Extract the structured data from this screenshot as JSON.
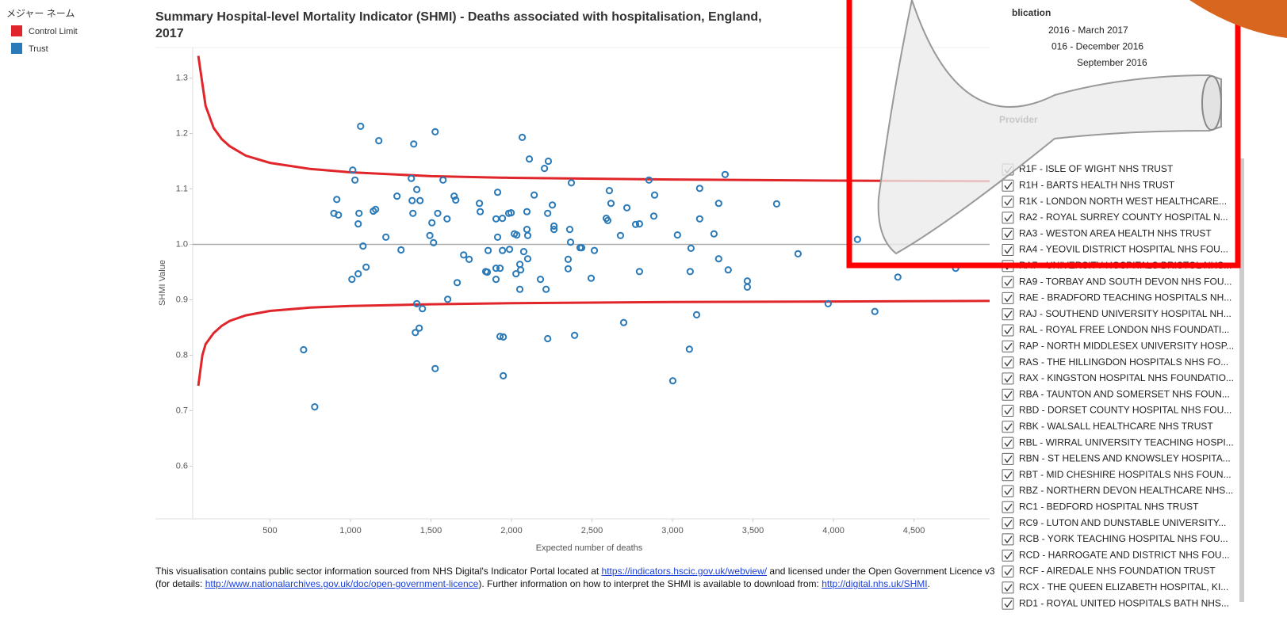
{
  "chart_data": {
    "type": "scatter",
    "title": "Summary Hospital-level Mortality Indicator (SHMI) - Deaths associated with hospitalisation, England,",
    "title_line2": "2017",
    "x_label": "Expected number of deaths",
    "y_label": "SHMI Value",
    "legend_title": "メジャー ネーム",
    "xlim": [
      20,
      4970
    ],
    "ylim": [
      0.505,
      1.355
    ],
    "xticks": [
      500,
      {
        "value": 1000,
        "label": "1,000"
      },
      {
        "value": 1500,
        "label": "1,500"
      },
      {
        "value": 2000,
        "label": "2,000"
      },
      {
        "value": 2500,
        "label": "2,500"
      },
      {
        "value": 3000,
        "label": "3,000"
      },
      {
        "value": 3500,
        "label": "3,500"
      },
      {
        "value": 4000,
        "label": "4,000"
      },
      {
        "value": 4500,
        "label": "4,500"
      }
    ],
    "yticks": [
      0.6,
      0.7,
      0.8,
      0.9,
      {
        "value": 1,
        "label": "1.0"
      },
      1.1,
      1.2,
      1.3
    ],
    "reference_line": 1,
    "control_limits": {
      "name": "Control Limit",
      "color": "#e0262b",
      "upper": {
        "x": [
          55,
          80,
          100,
          150,
          200,
          250,
          350,
          500,
          750,
          1000,
          1500,
          2000,
          3000,
          4000,
          4970
        ],
        "values": [
          1.34,
          1.29,
          1.25,
          1.21,
          1.19,
          1.177,
          1.16,
          1.147,
          1.136,
          1.13,
          1.123,
          1.12,
          1.117,
          1.115,
          1.114
        ]
      },
      "lower": {
        "x": [
          55,
          80,
          100,
          150,
          200,
          250,
          350,
          500,
          750,
          1000,
          1500,
          2000,
          3000,
          4000,
          4970
        ],
        "values": [
          0.745,
          0.8,
          0.82,
          0.84,
          0.853,
          0.862,
          0.872,
          0.88,
          0.886,
          0.889,
          0.892,
          0.894,
          0.896,
          0.897,
          0.898
        ]
      }
    },
    "series": [
      {
        "name": "Trust",
        "color": "#2a7ab9",
        "x": [
          1063,
          1526,
          1176,
          1393,
          2067,
          2111,
          2229,
          2205,
          1014,
          1028,
          1378,
          1575,
          1412,
          2372,
          2854,
          3169,
          3327,
          2608,
          1289,
          915,
          1383,
          1432,
          1644,
          1654,
          1914,
          2141,
          2254,
          1801,
          2889,
          2717,
          2618,
          3287,
          3647,
          897,
          925,
          1053,
          1142,
          1156,
          1388,
          1542,
          1600,
          1806,
          1904,
          1944,
          1983,
          1998,
          2096,
          2225,
          2589,
          2598,
          2771,
          2795,
          2884,
          3169,
          1048,
          1506,
          2264,
          2264,
          2096,
          2362,
          1220,
          1493,
          1914,
          2018,
          2033,
          2101,
          2677,
          3031,
          3258,
          2367,
          2426,
          2436,
          1516,
          1078,
          1314,
          1855,
          1944,
          1988,
          2076,
          2515,
          3115,
          3780,
          4149,
          1703,
          1737,
          2101,
          2352,
          3287,
          2052,
          1097,
          1929,
          2057,
          2352,
          2795,
          3110,
          3346,
          1840,
          1850,
          1904,
          2028,
          1048,
          1009,
          2180,
          1904,
          2495,
          3465,
          3465,
          4400,
          4759,
          1663,
          2052,
          2215,
          1604,
          1412,
          1447,
          3967,
          4257,
          3150,
          2697,
          1427,
          1403,
          1929,
          1949,
          2225,
          2392,
          709,
          3105,
          1526,
          1949,
          3002,
          778
        ],
        "values": [
          1.213,
          1.203,
          1.187,
          1.181,
          1.193,
          1.154,
          1.15,
          1.137,
          1.134,
          1.116,
          1.119,
          1.116,
          1.099,
          1.111,
          1.116,
          1.101,
          1.126,
          1.097,
          1.087,
          1.081,
          1.079,
          1.079,
          1.087,
          1.08,
          1.094,
          1.089,
          1.071,
          1.074,
          1.089,
          1.066,
          1.074,
          1.074,
          1.073,
          1.056,
          1.053,
          1.056,
          1.06,
          1.063,
          1.056,
          1.056,
          1.046,
          1.059,
          1.046,
          1.047,
          1.056,
          1.057,
          1.059,
          1.056,
          1.047,
          1.043,
          1.036,
          1.037,
          1.051,
          1.046,
          1.037,
          1.039,
          1.033,
          1.027,
          1.027,
          1.027,
          1.013,
          1.016,
          1.013,
          1.019,
          1.017,
          1.016,
          1.016,
          1.017,
          1.019,
          1.004,
          0.994,
          0.994,
          1.003,
          0.997,
          0.99,
          0.989,
          0.989,
          0.991,
          0.987,
          0.989,
          0.993,
          0.983,
          1.009,
          0.981,
          0.973,
          0.974,
          0.973,
          0.974,
          0.964,
          0.959,
          0.957,
          0.954,
          0.956,
          0.951,
          0.951,
          0.954,
          0.951,
          0.95,
          0.957,
          0.947,
          0.947,
          0.937,
          0.937,
          0.937,
          0.939,
          0.934,
          0.923,
          0.941,
          0.957,
          0.931,
          0.919,
          0.919,
          0.901,
          0.893,
          0.884,
          0.893,
          0.879,
          0.873,
          0.859,
          0.849,
          0.841,
          0.834,
          0.833,
          0.83,
          0.836,
          0.81,
          0.811,
          0.776,
          0.763,
          0.754,
          0.707
        ]
      }
    ]
  },
  "filters": {
    "publication": {
      "title": "blication",
      "items": [
        "2016 - March 2017",
        "016 - December 2016",
        "September 2016"
      ]
    },
    "provider": {
      "title": "Provider",
      "items": [
        "R1F - ISLE OF WIGHT NHS TRUST",
        "R1H - BARTS HEALTH NHS TRUST",
        "R1K - LONDON NORTH WEST HEALTHCARE...",
        "RA2 - ROYAL SURREY COUNTY HOSPITAL N...",
        "RA3 - WESTON AREA HEALTH NHS TRUST",
        "RA4 - YEOVIL DISTRICT HOSPITAL NHS FOU...",
        "RA7 - UNIVERSITY HOSPITALS BRISTOL NHS...",
        "RA9 - TORBAY AND SOUTH DEVON NHS FOU...",
        "RAE - BRADFORD TEACHING HOSPITALS NH...",
        "RAJ - SOUTHEND UNIVERSITY HOSPITAL NH...",
        "RAL - ROYAL FREE LONDON NHS FOUNDATI...",
        "RAP - NORTH MIDDLESEX UNIVERSITY HOSP...",
        "RAS - THE HILLINGDON HOSPITALS NHS FO...",
        "RAX - KINGSTON HOSPITAL NHS FOUNDATIO...",
        "RBA - TAUNTON AND SOMERSET NHS FOUN...",
        "RBD - DORSET COUNTY HOSPITAL NHS FOU...",
        "RBK - WALSALL HEALTHCARE NHS TRUST",
        "RBL - WIRRAL UNIVERSITY TEACHING HOSPI...",
        "RBN - ST HELENS AND KNOWSLEY HOSPITA...",
        "RBT - MID CHESHIRE HOSPITALS NHS FOUN...",
        "RBZ - NORTHERN DEVON HEALTHCARE NHS...",
        "RC1 - BEDFORD HOSPITAL NHS TRUST",
        "RC9 - LUTON AND DUNSTABLE UNIVERSITY...",
        "RCB - YORK TEACHING HOSPITAL NHS FOU...",
        "RCD - HARROGATE AND DISTRICT NHS FOU...",
        "RCF - AIREDALE NHS FOUNDATION TRUST",
        "RCX - THE QUEEN ELIZABETH HOSPITAL, KI...",
        "RD1 - ROYAL UNITED HOSPITALS BATH NHS..."
      ]
    }
  },
  "footer": {
    "parts": [
      "This visualisation contains public sector information sourced from NHS Digital's Indicator Portal located at ",
      "https://indicators.hscic.gov.uk/webview/",
      " and licensed under the Open Government Licence v3 (for details: ",
      "http://www.nationalarchives.gov.uk/doc/open-government-licence",
      ").  Further information on how to interpret the SHMI is available to download from: ",
      "http://digital.nhs.uk/SHMI",
      "."
    ],
    "links": [
      1,
      3,
      5
    ]
  }
}
